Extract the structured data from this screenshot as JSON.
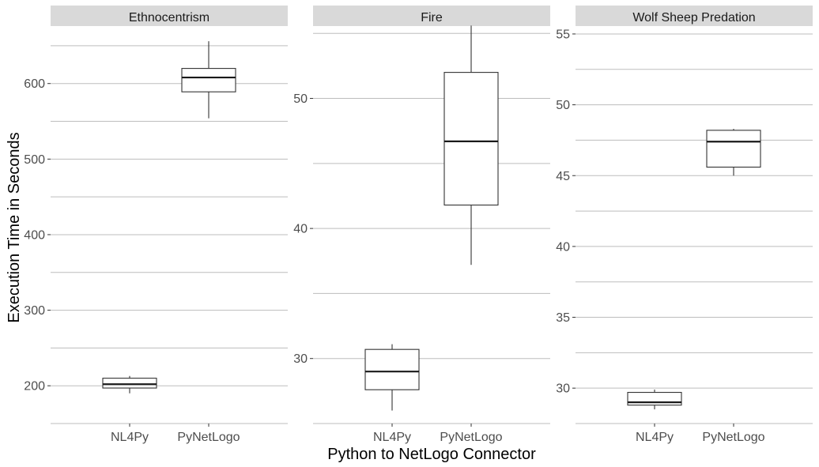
{
  "chart_data": {
    "type": "boxplot",
    "ylabel": "Execution Time in Seconds",
    "xlabel": "Python to NetLogo Connector",
    "categories": [
      "NL4Py",
      "PyNetLogo"
    ],
    "grid": true,
    "facets": [
      {
        "title": "Ethnocentrism",
        "ylim": [
          150,
          675
        ],
        "yticks": [
          200,
          300,
          400,
          500,
          600
        ],
        "tick_labels": [
          "200",
          "300",
          "400",
          "500",
          "600"
        ],
        "boxes": [
          {
            "category": "NL4Py",
            "min": 190,
            "q1": 197,
            "median": 202,
            "q3": 210,
            "max": 213
          },
          {
            "category": "PyNetLogo",
            "min": 554,
            "q1": 589,
            "median": 608,
            "q3": 620,
            "max": 656
          }
        ]
      },
      {
        "title": "Fire",
        "ylim": [
          25,
          55.5
        ],
        "yticks": [
          30,
          40,
          50
        ],
        "tick_labels": [
          "30",
          "40",
          "50"
        ],
        "boxes": [
          {
            "category": "NL4Py",
            "min": 26.0,
            "q1": 27.6,
            "median": 29.0,
            "q3": 30.7,
            "max": 31.1
          },
          {
            "category": "PyNetLogo",
            "min": 37.2,
            "q1": 41.8,
            "median": 46.7,
            "q3": 52.0,
            "max": 55.6
          }
        ]
      },
      {
        "title": "Wolf Sheep Predation",
        "ylim": [
          27.5,
          55.5
        ],
        "yticks": [
          30,
          35,
          40,
          45,
          50,
          55
        ],
        "tick_labels": [
          "30",
          "35",
          "40",
          "45",
          "50",
          "55"
        ],
        "boxes": [
          {
            "category": "NL4Py",
            "min": 28.5,
            "q1": 28.8,
            "median": 29.0,
            "q3": 29.7,
            "max": 29.9
          },
          {
            "category": "PyNetLogo",
            "min": 45.0,
            "q1": 45.6,
            "median": 47.4,
            "q3": 48.2,
            "max": 48.3
          }
        ]
      }
    ]
  }
}
